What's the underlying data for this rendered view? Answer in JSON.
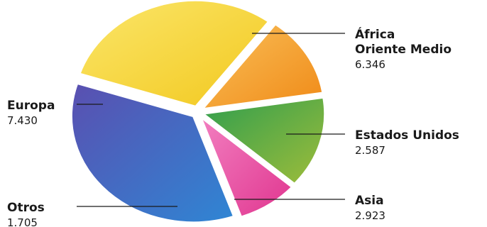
{
  "chart_data": {
    "type": "pie",
    "slices": [
      {
        "label": [
          "África",
          "Oriente Medio"
        ],
        "value": 6346,
        "value_text": "6.346",
        "color": "#f2c81e",
        "color2": "#fbe66a"
      },
      {
        "label": [
          "Estados Unidos"
        ],
        "value": 2587,
        "value_text": "2.587",
        "color": "#f08a17",
        "color2": "#f9c05a"
      },
      {
        "label": [
          "Asia"
        ],
        "value": 2923,
        "value_text": "2.923",
        "color": "#9fbd3a",
        "color2": "#2f9e4e"
      },
      {
        "label": [
          "Otros"
        ],
        "value": 1705,
        "value_text": "1.705",
        "color": "#e0358f",
        "color2": "#f27fc0"
      },
      {
        "label": [
          "Europa"
        ],
        "value": 7430,
        "value_text": "7.430",
        "color": "#2f86d4",
        "color2": "#5a4fb0"
      }
    ],
    "title": "",
    "legend": "none"
  }
}
